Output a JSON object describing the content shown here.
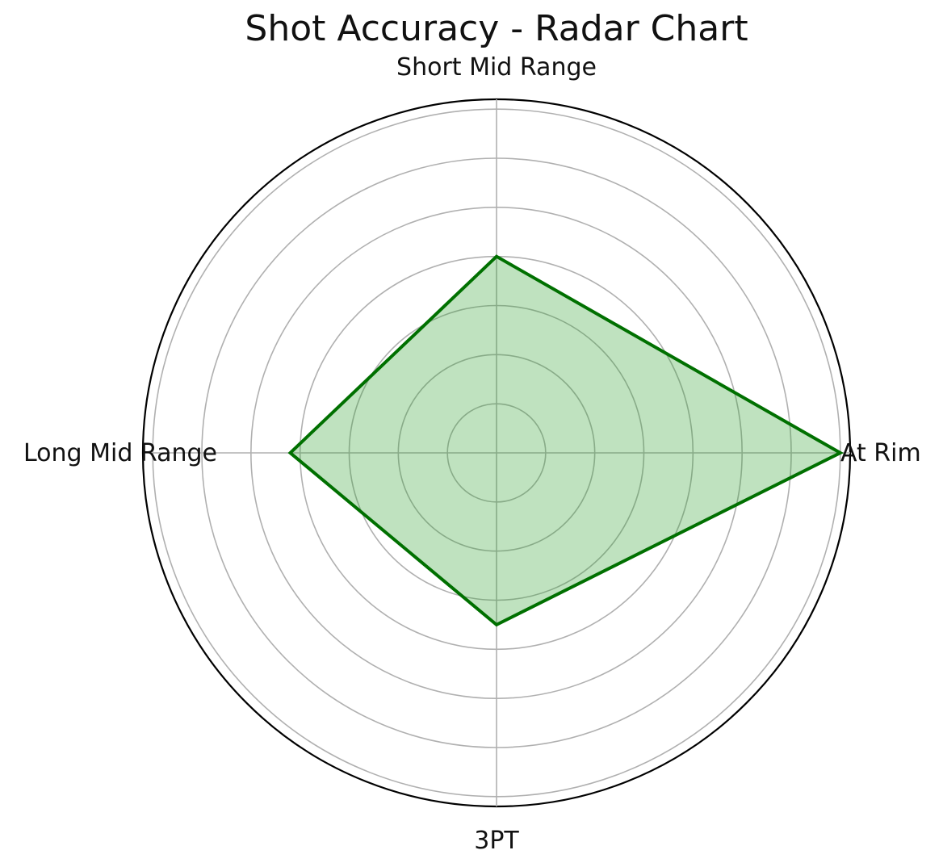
{
  "chart_data": {
    "type": "radar",
    "title": "Shot Accuracy - Radar Chart",
    "categories": [
      "At Rim",
      "Short Mid Range",
      "Long Mid Range",
      "3PT"
    ],
    "series": [
      {
        "values": [
          70,
          40,
          42,
          35
        ],
        "line_color": "#007000",
        "fill_color": "#2ca02c"
      }
    ],
    "r_max": 72,
    "r_gridlines": [
      10,
      20,
      30,
      40,
      50,
      60,
      70
    ],
    "grid": true,
    "colors": {
      "grid": "#b0b0b0",
      "outer_ring": "#000000"
    }
  }
}
